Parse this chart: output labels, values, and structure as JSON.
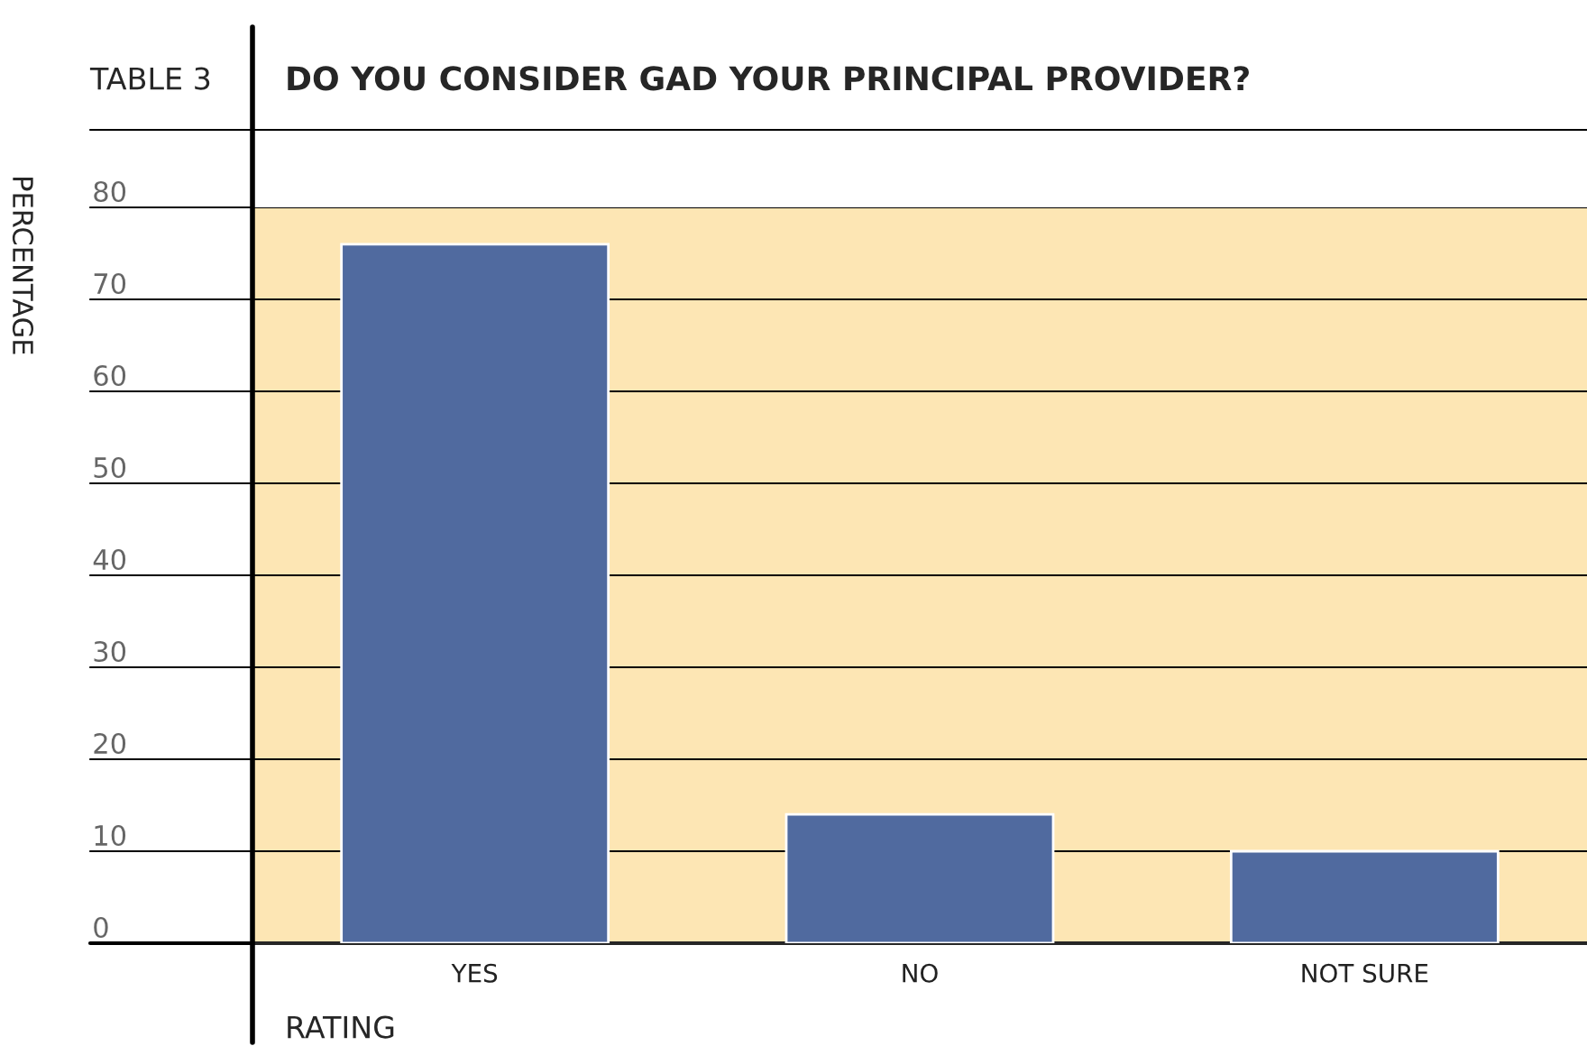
{
  "chart_data": {
    "type": "bar",
    "title": "DO YOU CONSIDER GAD YOUR PRINCIPAL PROVIDER?",
    "annotations": [
      "TABLE 3"
    ],
    "xlabel": "RATING",
    "ylabel": "PERCENTAGE",
    "categories": [
      "YES",
      "NO",
      "NOT SURE"
    ],
    "values": [
      76,
      14,
      10
    ],
    "color": "#506a9f",
    "ylim": [
      0,
      80
    ],
    "yticks": [
      0,
      10,
      20,
      30,
      40,
      50,
      60,
      70,
      80
    ],
    "grid": "y"
  }
}
